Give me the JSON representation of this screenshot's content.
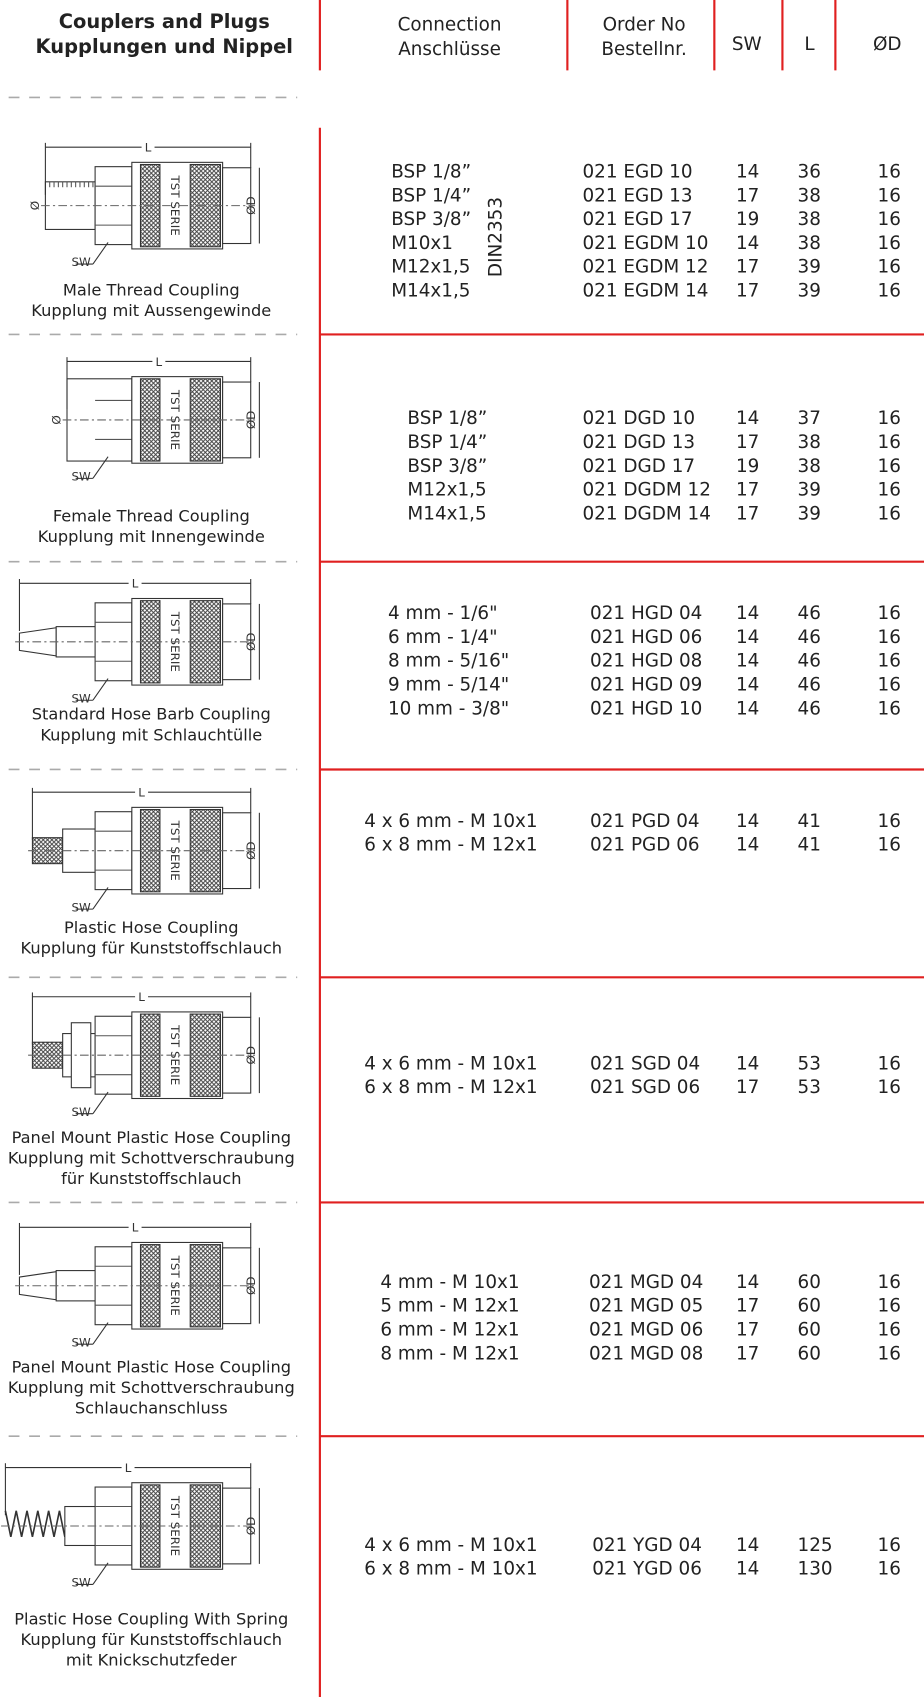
{
  "header": {
    "title": [
      "Couplers and Plugs",
      "Kupplungen und Nippel"
    ],
    "connection": [
      "Connection",
      "Anschlüsse"
    ],
    "order": [
      "Order No",
      "Bestellnr."
    ],
    "sw": "SW",
    "l": "L",
    "od": "ØD"
  },
  "sections": [
    {
      "caption": [
        "Male Thread Coupling",
        "Kupplung mit Aussengewinde"
      ],
      "standard": "DIN2353",
      "drawing": {
        "length": "L",
        "diameter": "ØD",
        "thread": "Ø",
        "sw": "SW",
        "marking": "TST SERIE"
      },
      "rows": [
        [
          "BSP 1/8”",
          "021 EGD 10",
          14,
          36,
          16
        ],
        [
          "BSP 1/4”",
          "021 EGD 13",
          17,
          38,
          16
        ],
        [
          "BSP 3/8”",
          "021 EGD 17",
          19,
          38,
          16
        ],
        [
          "M10x1",
          "021 EGDM 10",
          14,
          38,
          16
        ],
        [
          "M12x1,5",
          "021 EGDM 12",
          17,
          39,
          16
        ],
        [
          "M14x1,5",
          "021 EGDM 14",
          17,
          39,
          16
        ]
      ]
    },
    {
      "caption": [
        "Female Thread Coupling",
        "Kupplung mit Innengewinde"
      ],
      "drawing": {
        "length": "L",
        "diameter": "ØD",
        "thread": "Ø",
        "sw": "SW",
        "marking": "TST SERIE"
      },
      "rows": [
        [
          "BSP 1/8”",
          "021 DGD 10",
          14,
          37,
          16
        ],
        [
          "BSP 1/4”",
          "021 DGD 13",
          17,
          38,
          16
        ],
        [
          "BSP 3/8”",
          "021 DGD 17",
          19,
          38,
          16
        ],
        [
          "M12x1,5",
          "021 DGDM 12",
          17,
          39,
          16
        ],
        [
          "M14x1,5",
          "021 DGDM 14",
          17,
          39,
          16
        ]
      ]
    },
    {
      "caption": [
        "Standard Hose Barb Coupling",
        "Kupplung mit Schlauchtülle"
      ],
      "drawing": {
        "length": "L",
        "diameter": "ØD",
        "sw": "SW",
        "marking": "TST SERIE"
      },
      "rows": [
        [
          "4 mm - 1/6\"",
          "021 HGD 04",
          14,
          46,
          16
        ],
        [
          "6 mm - 1/4\"",
          "021 HGD 06",
          14,
          46,
          16
        ],
        [
          "8 mm - 5/16\"",
          "021 HGD 08",
          14,
          46,
          16
        ],
        [
          "9 mm - 5/14\"",
          "021 HGD 09",
          14,
          46,
          16
        ],
        [
          "10 mm - 3/8\"",
          "021 HGD 10",
          14,
          46,
          16
        ]
      ]
    },
    {
      "caption": [
        "Plastic Hose Coupling",
        "Kupplung für Kunststoffschlauch"
      ],
      "drawing": {
        "length": "L",
        "diameter": "ØD",
        "sw": "SW",
        "marking": "TST SERIE"
      },
      "rows": [
        [
          "4 x 6 mm - M 10x1",
          "021 PGD 04",
          14,
          41,
          16
        ],
        [
          "6 x 8 mm - M 12x1",
          "021 PGD 06",
          14,
          41,
          16
        ]
      ]
    },
    {
      "caption": [
        "Panel Mount Plastic Hose Coupling",
        "Kupplung mit Schottverschraubung",
        "für Kunststoffschlauch"
      ],
      "drawing": {
        "length": "L",
        "diameter": "ØD",
        "sw": "SW",
        "marking": "TST SERIE"
      },
      "rows": [
        [
          "4 x 6 mm - M 10x1",
          "021 SGD 04",
          14,
          53,
          16
        ],
        [
          "6 x 8 mm - M 12x1",
          "021 SGD 06",
          17,
          53,
          16
        ]
      ]
    },
    {
      "caption": [
        "Panel Mount Plastic Hose Coupling",
        "Kupplung mit Schottverschraubung",
        "Schlauchanschluss"
      ],
      "drawing": {
        "length": "L",
        "diameter": "ØD",
        "sw": "SW",
        "marking": "TST SERIE"
      },
      "rows": [
        [
          "4 mm - M 10x1",
          "021 MGD 04",
          14,
          60,
          16
        ],
        [
          "5 mm - M 12x1",
          "021 MGD 05",
          17,
          60,
          16
        ],
        [
          "6 mm - M 12x1",
          "021 MGD 06",
          17,
          60,
          16
        ],
        [
          "8 mm - M 12x1",
          "021 MGD 08",
          17,
          60,
          16
        ]
      ]
    },
    {
      "caption": [
        "Plastic Hose Coupling With Spring",
        "Kupplung für Kunststoffschlauch",
        "mit Knickschutzfeder"
      ],
      "drawing": {
        "length": "L",
        "diameter": "ØD",
        "sw": "SW",
        "marking": "TST SERIE"
      },
      "rows": [
        [
          "4 x 6 mm - M 10x1",
          "021 YGD 04",
          14,
          125,
          16
        ],
        [
          "6 x 8 mm - M 10x1",
          "021 YGD 06",
          14,
          130,
          16
        ]
      ]
    }
  ]
}
